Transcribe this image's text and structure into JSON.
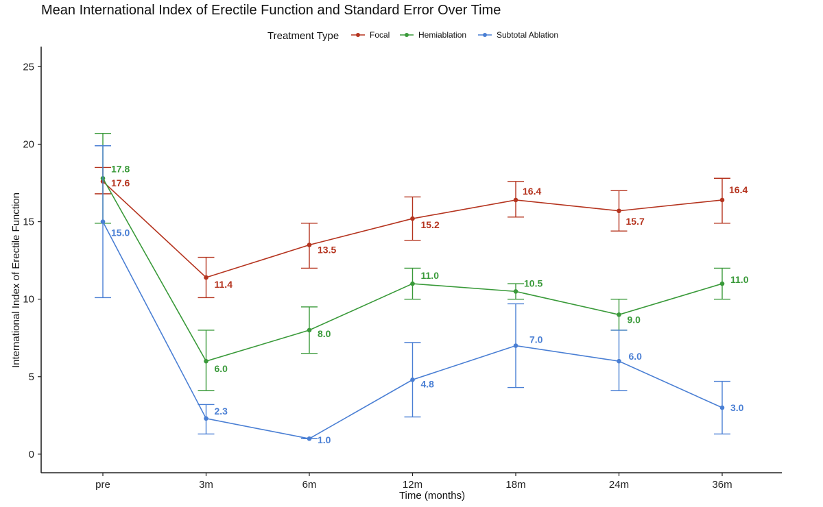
{
  "chart_data": {
    "type": "line",
    "title": "Mean International Index of Erectile Function and Standard Error Over Time",
    "xlabel": "Time (months)",
    "ylabel": "International Index of Erectile Function",
    "categories": [
      "pre",
      "3m",
      "6m",
      "12m",
      "18m",
      "24m",
      "36m"
    ],
    "ylim": [
      -1.2,
      26.3
    ],
    "yticks": [
      0,
      5,
      10,
      15,
      20,
      25
    ],
    "grid": false,
    "legend": {
      "title": "Treatment Type",
      "placement": "top",
      "items": [
        "Focal",
        "Hemiablation",
        "Subtotal Ablation"
      ]
    },
    "series": [
      {
        "name": "Focal",
        "color": "#b5341f",
        "values": [
          17.6,
          11.4,
          13.5,
          15.2,
          16.4,
          15.7,
          16.4
        ],
        "labels": [
          "17.6",
          "11.4",
          "13.5",
          "15.2",
          "16.4",
          "15.7",
          "16.4"
        ],
        "error_low": [
          16.8,
          10.1,
          12.0,
          13.8,
          15.3,
          14.4,
          14.9
        ],
        "error_high": [
          18.5,
          12.7,
          14.9,
          16.6,
          17.6,
          17.0,
          17.8
        ]
      },
      {
        "name": "Hemiablation",
        "color": "#3a9a3a",
        "values": [
          17.8,
          6.0,
          8.0,
          11.0,
          10.5,
          9.0,
          11.0
        ],
        "labels": [
          "17.8",
          "6.0",
          "8.0",
          "11.0",
          "10.5",
          "9.0",
          "11.0"
        ],
        "error_low": [
          14.9,
          4.1,
          6.5,
          10.0,
          10.0,
          8.0,
          10.0
        ],
        "error_high": [
          20.7,
          8.0,
          9.5,
          12.0,
          11.0,
          10.0,
          12.0
        ]
      },
      {
        "name": "Subtotal Ablation",
        "color": "#4a7fd4",
        "values": [
          15.0,
          2.3,
          1.0,
          4.8,
          7.0,
          6.0,
          3.0
        ],
        "labels": [
          "15.0",
          "2.3",
          "1.0",
          "4.8",
          "7.0",
          "6.0",
          "3.0"
        ],
        "error_low": [
          10.1,
          1.3,
          1.0,
          2.4,
          4.3,
          4.1,
          1.3
        ],
        "error_high": [
          19.9,
          3.2,
          1.0,
          7.2,
          9.7,
          8.0,
          4.7
        ]
      }
    ]
  }
}
